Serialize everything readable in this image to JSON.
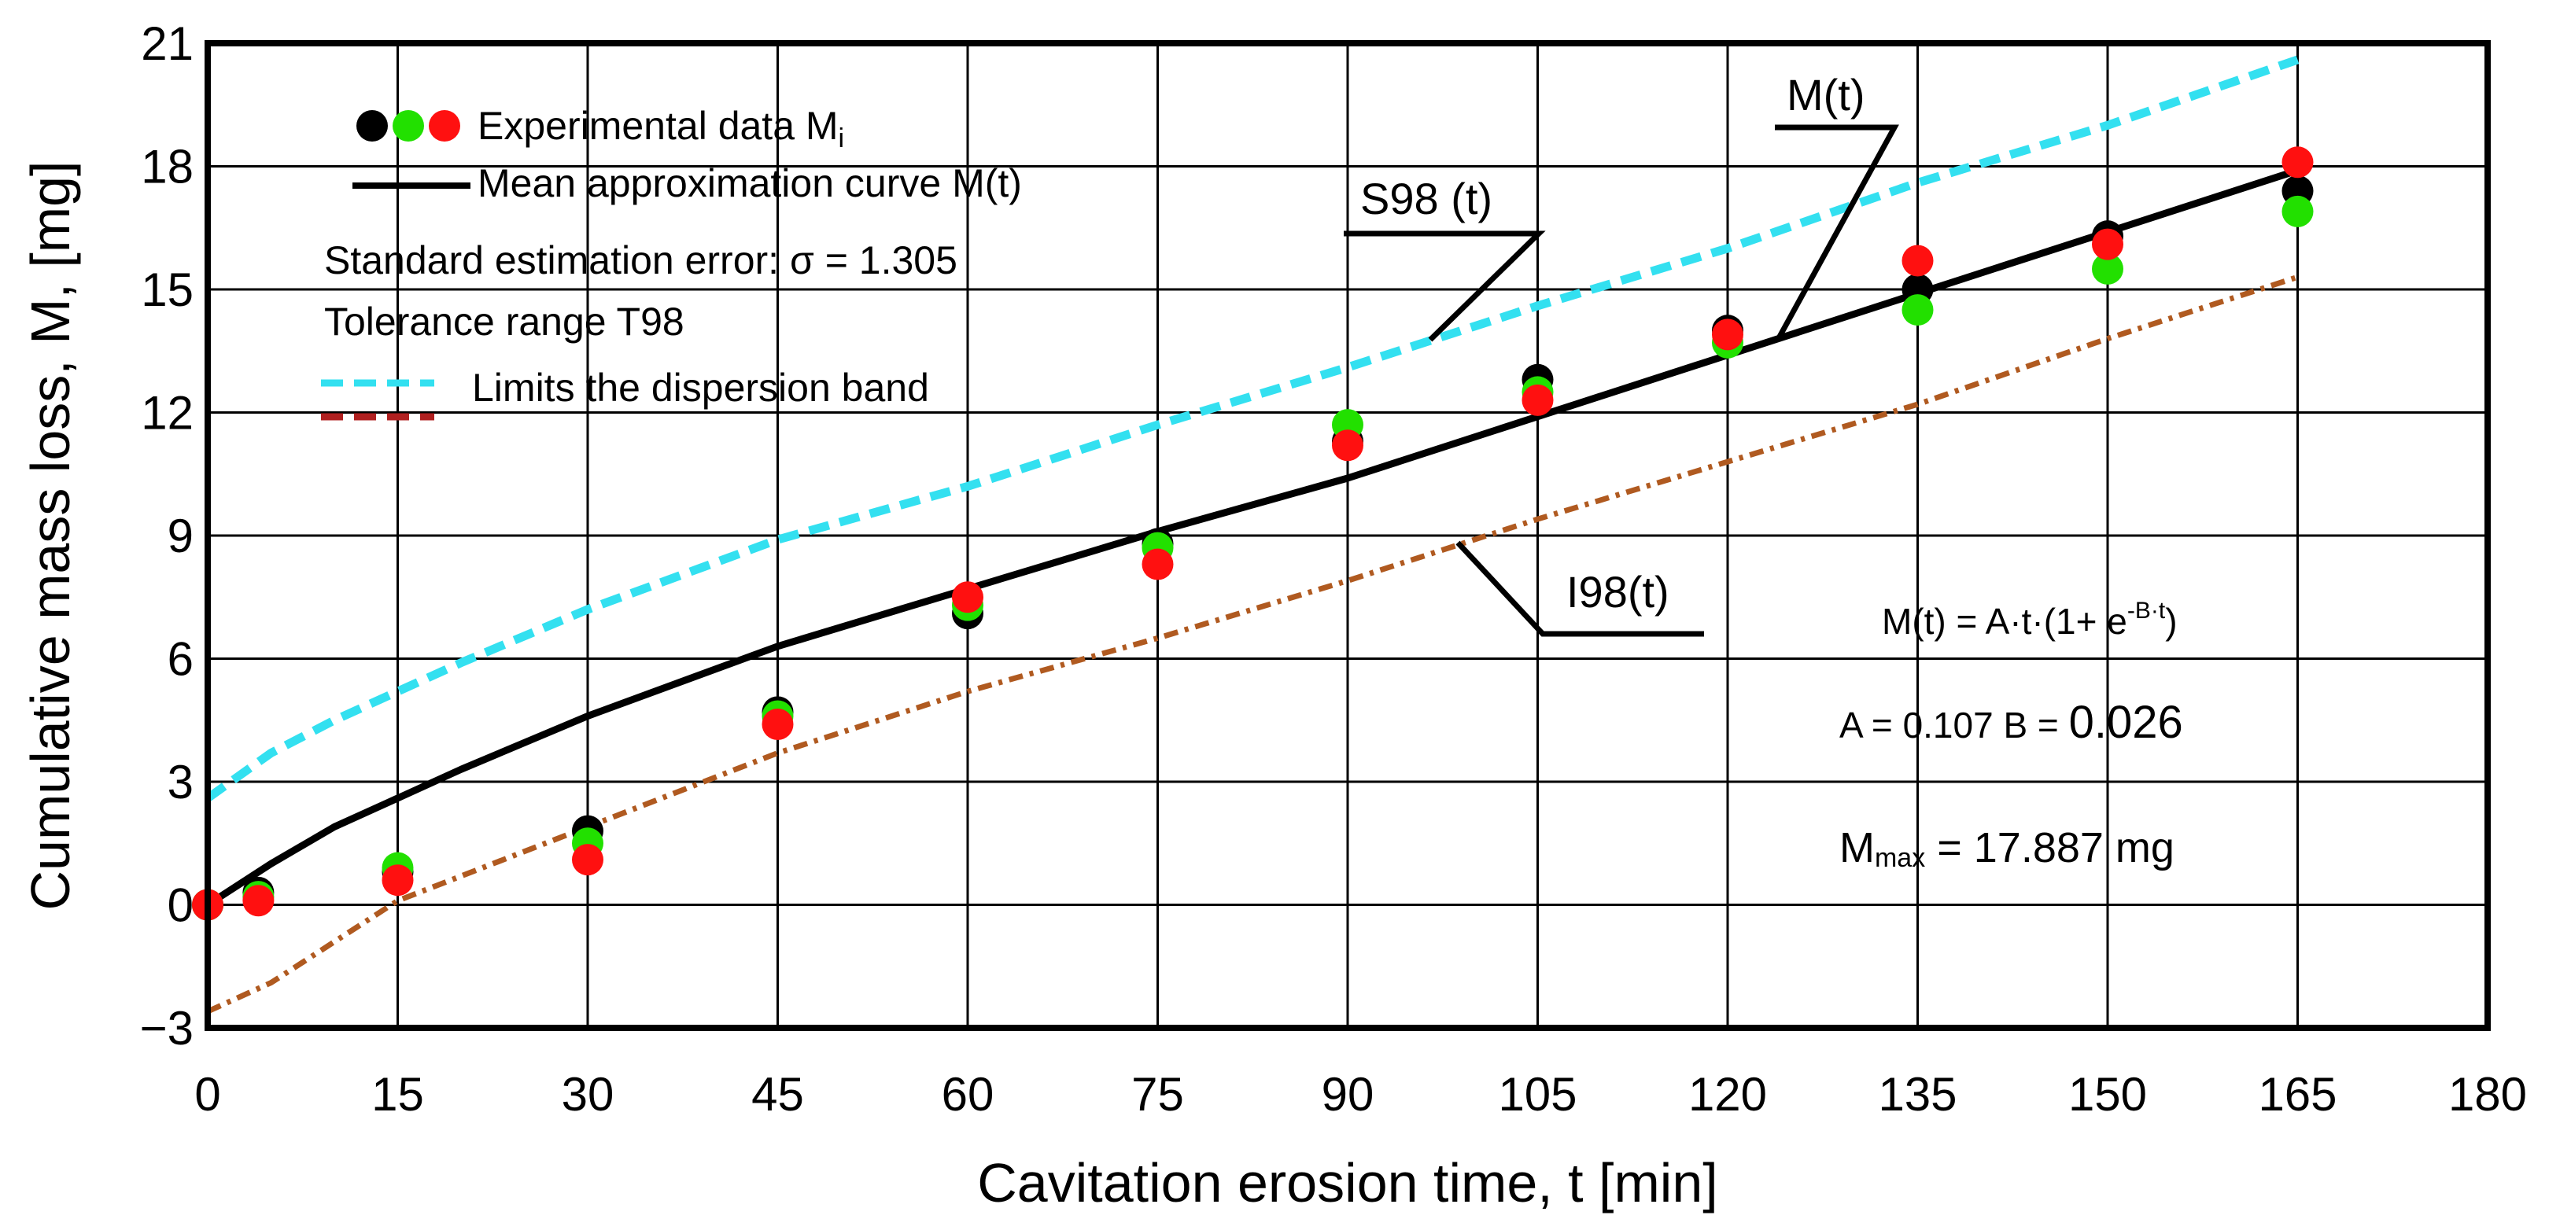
{
  "chart_data": {
    "type": "scatter",
    "xlabel": "Cavitation erosion time, t [min]",
    "ylabel": "Cumulative mass loss,  M, [mg]",
    "xlim": [
      0,
      180
    ],
    "ylim": [
      -3,
      21
    ],
    "xticks": [
      "0",
      "15",
      "30",
      "45",
      "60",
      "75",
      "90",
      "105",
      "120",
      "135",
      "150",
      "165",
      "180"
    ],
    "yticks": [
      "−3",
      "0",
      "3",
      "6",
      "9",
      "12",
      "15",
      "18",
      "21"
    ],
    "grid": true,
    "legend_position": "top-left",
    "experimental": {
      "x": [
        0,
        4,
        15,
        30,
        45,
        60,
        75,
        90,
        105,
        120,
        135,
        150,
        165
      ],
      "series": [
        {
          "color": "#000000",
          "values": [
            0.0,
            0.3,
            0.8,
            1.8,
            4.7,
            7.1,
            8.8,
            11.3,
            12.8,
            14.0,
            15.0,
            16.3,
            17.4
          ]
        },
        {
          "color": "#22e000",
          "values": [
            0.0,
            0.2,
            0.9,
            1.5,
            4.6,
            7.3,
            8.7,
            11.7,
            12.5,
            13.7,
            14.5,
            15.5,
            16.9
          ]
        },
        {
          "color": "#ff1010",
          "values": [
            0.0,
            0.1,
            0.6,
            1.1,
            4.4,
            7.5,
            8.3,
            11.2,
            12.3,
            13.9,
            15.7,
            16.1,
            18.1
          ]
        }
      ]
    },
    "curves": [
      {
        "role": "mean",
        "color": "#000000",
        "style": "solid",
        "x": [
          0,
          5,
          10,
          15,
          20,
          30,
          45,
          60,
          75,
          90,
          105,
          120,
          135,
          150,
          165
        ],
        "values": [
          0.0,
          1.0,
          1.9,
          2.6,
          3.3,
          4.6,
          6.3,
          7.7,
          9.1,
          10.4,
          11.9,
          13.4,
          14.9,
          16.4,
          17.9
        ]
      },
      {
        "role": "upper",
        "color": "#33e0f0",
        "style": "dashed",
        "x": [
          0,
          5,
          10,
          15,
          20,
          30,
          45,
          60,
          75,
          90,
          105,
          120,
          135,
          150,
          165
        ],
        "values": [
          2.6,
          3.7,
          4.5,
          5.2,
          5.9,
          7.2,
          8.9,
          10.2,
          11.7,
          13.1,
          14.6,
          16.0,
          17.6,
          19.0,
          20.6
        ]
      },
      {
        "role": "lower",
        "color": "#b05a20",
        "style": "dash-dot",
        "x": [
          0,
          5,
          10,
          15,
          20,
          30,
          45,
          60,
          75,
          90,
          105,
          120,
          135,
          150,
          165
        ],
        "values": [
          -2.6,
          -1.9,
          -0.9,
          0.1,
          0.7,
          1.9,
          3.7,
          5.2,
          6.5,
          7.9,
          9.4,
          10.8,
          12.2,
          13.8,
          15.3
        ]
      }
    ],
    "legend": {
      "experimental": "Experimental data M",
      "experimental_sub": "i",
      "mean": "Mean approximation curve M(t)",
      "error": "Standard estimation error: σ = 1.305",
      "tolerance": "Tolerance range T98",
      "limits": "Limits the dispersion band",
      "limits_colors": [
        "#33e0f0",
        "#b02020"
      ]
    },
    "annotations": {
      "s98": "S98 (t)",
      "mt": "M(t)",
      "i98": "I98(t)",
      "formula_lhs": "M(t) = A·t·(1+ e",
      "formula_exp": "-B·t",
      "formula_rhs": ")",
      "params_a": "A = 0.107  B = ",
      "params_b": "0.026",
      "mmax_m": "M",
      "mmax_sub": "max",
      "mmax_value": " = 17.887 mg"
    }
  }
}
